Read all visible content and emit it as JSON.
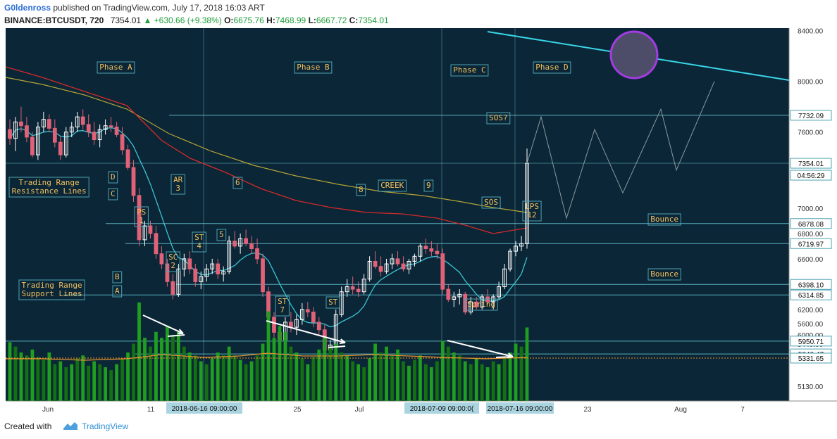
{
  "header": {
    "author": "G0ldenross",
    "published_text": "published on TradingView.com, July 17, 2018 16:03 ART",
    "symbol": "BINANCE:BTCUSDT, 720",
    "last": "7354.01",
    "change": "+630.66 (+9.38%)",
    "o_label": "O:",
    "o_value": "6675.76",
    "h_label": "H:",
    "h_value": "7468.99",
    "l_label": "L:",
    "l_value": "6667.72",
    "c_label": "C:",
    "c_value": "7354.01"
  },
  "footer": {
    "created_with": "Created with",
    "brand": "TradingView"
  },
  "colors": {
    "background": "#0b2636",
    "up_candle": "#ffffff",
    "down_candle": "#e06278",
    "ma_fast": "#3cc4d4",
    "ma_mid": "#d42a2a",
    "ma_slow": "#b5a437",
    "volume_up": "#1f9e1f",
    "volume_down": "#137013",
    "volume_ma": "#e8932d",
    "annotation_text": "#f0c060",
    "level_line": "#67c8d6",
    "trend_line": "#39d6e8",
    "circle": "#a23ce0"
  },
  "chart_data": {
    "type": "candlestick",
    "title": "",
    "price_axis": {
      "ticks": [
        "8400.00",
        "8000.00",
        "7600.00",
        "7000.00",
        "6800.00",
        "6600.00",
        "6200.00",
        "6000.00",
        "5800.00",
        "5600.00",
        "5440.00",
        "5130.00"
      ],
      "range": [
        5050,
        8420
      ]
    },
    "price_labels": [
      {
        "value": 7732.09,
        "text": "7732.09"
      },
      {
        "value": 7354.01,
        "text": "7354.01",
        "highlight": true
      },
      {
        "value": "04:56:29",
        "text": "04:56:29"
      },
      {
        "value": 6878.08,
        "text": "6878.08"
      },
      {
        "value": 6719.97,
        "text": "6719.97"
      },
      {
        "value": 6398.1,
        "text": "6398.10"
      },
      {
        "value": 6314.85,
        "text": "6314.85"
      },
      {
        "value": 5950.71,
        "text": "5950.71"
      },
      {
        "value": 5849.47,
        "text": "5849.47"
      },
      {
        "value": 5331.65,
        "text": "5331.65"
      }
    ],
    "time_axis": {
      "ticks": [
        "Jun",
        "11",
        "25",
        "Jul",
        "23",
        "Aug",
        "7"
      ],
      "highlighted": [
        "2018-06-16 09:00:00",
        "2018-07-09 09:00:0(",
        "2018-07-16 09:00:00"
      ]
    },
    "phase_labels": [
      "Phase A",
      "Phase B",
      "Phase C",
      "Phase D"
    ],
    "annotations": [
      "D",
      "C",
      "B",
      "A",
      "AR\n3",
      "PS\n1",
      "SC\n2",
      "ST\n4",
      "5",
      "6",
      "8",
      "CREEK",
      "9",
      "SOS",
      "SOS?",
      "LPS\n12",
      "ST\n7",
      "ST",
      "Spring"
    ],
    "notes": [
      "Trading Range\nResistance Lines",
      "Trading Range\nSupport Lines",
      "Bounce",
      "Bounce"
    ],
    "candles": [
      [
        7620,
        7700,
        7500,
        7550
      ],
      [
        7550,
        7720,
        7450,
        7680
      ],
      [
        7680,
        7800,
        7600,
        7650
      ],
      [
        7650,
        7720,
        7520,
        7560
      ],
      [
        7560,
        7600,
        7400,
        7420
      ],
      [
        7420,
        7680,
        7380,
        7640
      ],
      [
        7640,
        7760,
        7600,
        7700
      ],
      [
        7700,
        7740,
        7600,
        7630
      ],
      [
        7630,
        7700,
        7480,
        7520
      ],
      [
        7520,
        7560,
        7380,
        7420
      ],
      [
        7420,
        7640,
        7400,
        7600
      ],
      [
        7600,
        7680,
        7560,
        7640
      ],
      [
        7640,
        7760,
        7600,
        7720
      ],
      [
        7720,
        7780,
        7620,
        7660
      ],
      [
        7660,
        7740,
        7560,
        7600
      ],
      [
        7600,
        7680,
        7500,
        7540
      ],
      [
        7540,
        7660,
        7480,
        7620
      ],
      [
        7620,
        7700,
        7580,
        7650
      ],
      [
        7650,
        7720,
        7600,
        7640
      ],
      [
        7640,
        7680,
        7560,
        7580
      ],
      [
        7580,
        7640,
        7420,
        7460
      ],
      [
        7460,
        7500,
        7300,
        7320
      ],
      [
        7320,
        7380,
        7050,
        7100
      ],
      [
        7100,
        7160,
        6700,
        6750
      ],
      [
        6750,
        6900,
        6700,
        6860
      ],
      [
        6860,
        6900,
        6760,
        6800
      ],
      [
        6800,
        6860,
        6600,
        6640
      ],
      [
        6640,
        6700,
        6520,
        6560
      ],
      [
        6560,
        6600,
        6380,
        6420
      ],
      [
        6420,
        6480,
        6280,
        6320
      ],
      [
        6320,
        6560,
        6300,
        6520
      ],
      [
        6520,
        6640,
        6460,
        6600
      ],
      [
        6600,
        6660,
        6480,
        6520
      ],
      [
        6520,
        6560,
        6380,
        6420
      ],
      [
        6420,
        6500,
        6360,
        6460
      ],
      [
        6460,
        6560,
        6420,
        6520
      ],
      [
        6520,
        6600,
        6480,
        6560
      ],
      [
        6560,
        6600,
        6440,
        6480
      ],
      [
        6480,
        6540,
        6420,
        6500
      ],
      [
        6500,
        6780,
        6480,
        6740
      ],
      [
        6740,
        6820,
        6680,
        6700
      ],
      [
        6700,
        6800,
        6640,
        6760
      ],
      [
        6760,
        6830,
        6700,
        6720
      ],
      [
        6720,
        6780,
        6640,
        6680
      ],
      [
        6680,
        6760,
        6560,
        6600
      ],
      [
        6600,
        6640,
        6300,
        6340
      ],
      [
        6340,
        6380,
        6100,
        6140
      ],
      [
        6140,
        6180,
        5980,
        6020
      ],
      [
        6020,
        6060,
        5920,
        5960
      ],
      [
        5960,
        6140,
        5940,
        6100
      ],
      [
        6100,
        6180,
        6020,
        6060
      ],
      [
        6060,
        6160,
        6000,
        6120
      ],
      [
        6120,
        6250,
        6080,
        6200
      ],
      [
        6200,
        6260,
        6140,
        6180
      ],
      [
        6180,
        6220,
        6060,
        6100
      ],
      [
        6100,
        6140,
        6000,
        6040
      ],
      [
        6040,
        6080,
        5840,
        5880
      ],
      [
        5880,
        5960,
        5820,
        5920
      ],
      [
        5920,
        6200,
        5900,
        6160
      ],
      [
        6160,
        6380,
        6140,
        6340
      ],
      [
        6340,
        6440,
        6300,
        6380
      ],
      [
        6380,
        6460,
        6320,
        6360
      ],
      [
        6360,
        6420,
        6300,
        6340
      ],
      [
        6340,
        6480,
        6320,
        6440
      ],
      [
        6440,
        6620,
        6420,
        6580
      ],
      [
        6580,
        6660,
        6520,
        6540
      ],
      [
        6540,
        6620,
        6460,
        6500
      ],
      [
        6500,
        6600,
        6480,
        6560
      ],
      [
        6560,
        6640,
        6520,
        6600
      ],
      [
        6600,
        6660,
        6540,
        6560
      ],
      [
        6560,
        6620,
        6500,
        6520
      ],
      [
        6520,
        6600,
        6480,
        6580
      ],
      [
        6580,
        6640,
        6540,
        6620
      ],
      [
        6620,
        6720,
        6580,
        6700
      ],
      [
        6700,
        6760,
        6640,
        6680
      ],
      [
        6680,
        6740,
        6620,
        6660
      ],
      [
        6660,
        6720,
        6600,
        6640
      ],
      [
        6640,
        6680,
        6320,
        6360
      ],
      [
        6360,
        6400,
        6260,
        6280
      ],
      [
        6280,
        6340,
        6220,
        6300
      ],
      [
        6300,
        6360,
        6240,
        6320
      ],
      [
        6320,
        6340,
        6160,
        6180
      ],
      [
        6180,
        6300,
        6160,
        6260
      ],
      [
        6260,
        6300,
        6200,
        6220
      ],
      [
        6220,
        6320,
        6200,
        6300
      ],
      [
        6300,
        6360,
        6240,
        6260
      ],
      [
        6260,
        6320,
        6200,
        6300
      ],
      [
        6300,
        6420,
        6280,
        6380
      ],
      [
        6380,
        6560,
        6360,
        6520
      ],
      [
        6520,
        6680,
        6500,
        6660
      ],
      [
        6660,
        6740,
        6620,
        6700
      ],
      [
        6700,
        6780,
        6660,
        6720
      ],
      [
        6720,
        7470,
        6680,
        7354
      ]
    ],
    "volume": [
      {
        "v": 5450,
        "up": true
      },
      {
        "v": 5420,
        "up": false
      },
      {
        "v": 5380,
        "up": true
      },
      {
        "v": 5360,
        "up": false
      },
      {
        "v": 5400,
        "up": true
      },
      {
        "v": 5350,
        "up": false
      },
      {
        "v": 5330,
        "up": false
      },
      {
        "v": 5380,
        "up": true
      },
      {
        "v": 5300,
        "up": false
      },
      {
        "v": 5320,
        "up": true
      },
      {
        "v": 5280,
        "up": false
      },
      {
        "v": 5300,
        "up": true
      },
      {
        "v": 5340,
        "up": false
      },
      {
        "v": 5360,
        "up": true
      },
      {
        "v": 5290,
        "up": false
      },
      {
        "v": 5320,
        "up": true
      },
      {
        "v": 5300,
        "up": false
      },
      {
        "v": 5280,
        "up": true
      },
      {
        "v": 5260,
        "up": false
      },
      {
        "v": 5300,
        "up": true
      },
      {
        "v": 5340,
        "up": false
      },
      {
        "v": 5380,
        "up": true
      },
      {
        "v": 5440,
        "up": false
      },
      {
        "v": 5720,
        "up": true
      },
      {
        "v": 5480,
        "up": true
      },
      {
        "v": 5420,
        "up": false
      },
      {
        "v": 5520,
        "up": true
      },
      {
        "v": 5480,
        "up": true
      },
      {
        "v": 5560,
        "up": true
      },
      {
        "v": 5500,
        "up": false
      },
      {
        "v": 5520,
        "up": true
      },
      {
        "v": 5420,
        "up": false
      },
      {
        "v": 5380,
        "up": true
      },
      {
        "v": 5360,
        "up": false
      },
      {
        "v": 5320,
        "up": true
      },
      {
        "v": 5300,
        "up": false
      },
      {
        "v": 5340,
        "up": true
      },
      {
        "v": 5380,
        "up": true
      },
      {
        "v": 5360,
        "up": false
      },
      {
        "v": 5420,
        "up": true
      },
      {
        "v": 5360,
        "up": false
      },
      {
        "v": 5330,
        "up": true
      },
      {
        "v": 5300,
        "up": false
      },
      {
        "v": 5320,
        "up": true
      },
      {
        "v": 5360,
        "up": false
      },
      {
        "v": 5440,
        "up": true
      },
      {
        "v": 5660,
        "up": true
      },
      {
        "v": 5480,
        "up": true
      },
      {
        "v": 5560,
        "up": true
      },
      {
        "v": 5520,
        "up": true
      },
      {
        "v": 5420,
        "up": false
      },
      {
        "v": 5380,
        "up": true
      },
      {
        "v": 5340,
        "up": false
      },
      {
        "v": 5300,
        "up": true
      },
      {
        "v": 5350,
        "up": false
      },
      {
        "v": 5400,
        "up": true
      },
      {
        "v": 5480,
        "up": true
      },
      {
        "v": 5420,
        "up": false
      },
      {
        "v": 5440,
        "up": true
      },
      {
        "v": 5380,
        "up": false
      },
      {
        "v": 5360,
        "up": true
      },
      {
        "v": 5320,
        "up": false
      },
      {
        "v": 5300,
        "up": true
      },
      {
        "v": 5280,
        "up": false
      },
      {
        "v": 5340,
        "up": true
      },
      {
        "v": 5440,
        "up": true
      },
      {
        "v": 5380,
        "up": false
      },
      {
        "v": 5420,
        "up": true
      },
      {
        "v": 5360,
        "up": false
      },
      {
        "v": 5400,
        "up": true
      },
      {
        "v": 5320,
        "up": false
      },
      {
        "v": 5290,
        "up": true
      },
      {
        "v": 5330,
        "up": false
      },
      {
        "v": 5360,
        "up": true
      },
      {
        "v": 5300,
        "up": false
      },
      {
        "v": 5280,
        "up": true
      },
      {
        "v": 5320,
        "up": false
      },
      {
        "v": 5460,
        "up": true
      },
      {
        "v": 5420,
        "up": false
      },
      {
        "v": 5380,
        "up": true
      },
      {
        "v": 5360,
        "up": false
      },
      {
        "v": 5320,
        "up": true
      },
      {
        "v": 5300,
        "up": false
      },
      {
        "v": 5340,
        "up": true
      },
      {
        "v": 5300,
        "up": false
      },
      {
        "v": 5280,
        "up": true
      },
      {
        "v": 5320,
        "up": false
      },
      {
        "v": 5300,
        "up": true
      },
      {
        "v": 5340,
        "up": false
      },
      {
        "v": 5380,
        "up": true
      },
      {
        "v": 5440,
        "up": true
      },
      {
        "v": 5420,
        "up": false
      },
      {
        "v": 5550,
        "up": true
      }
    ],
    "projection": [
      7354,
      7720,
      6920,
      7620,
      7120,
      7780,
      7300,
      8000
    ]
  }
}
